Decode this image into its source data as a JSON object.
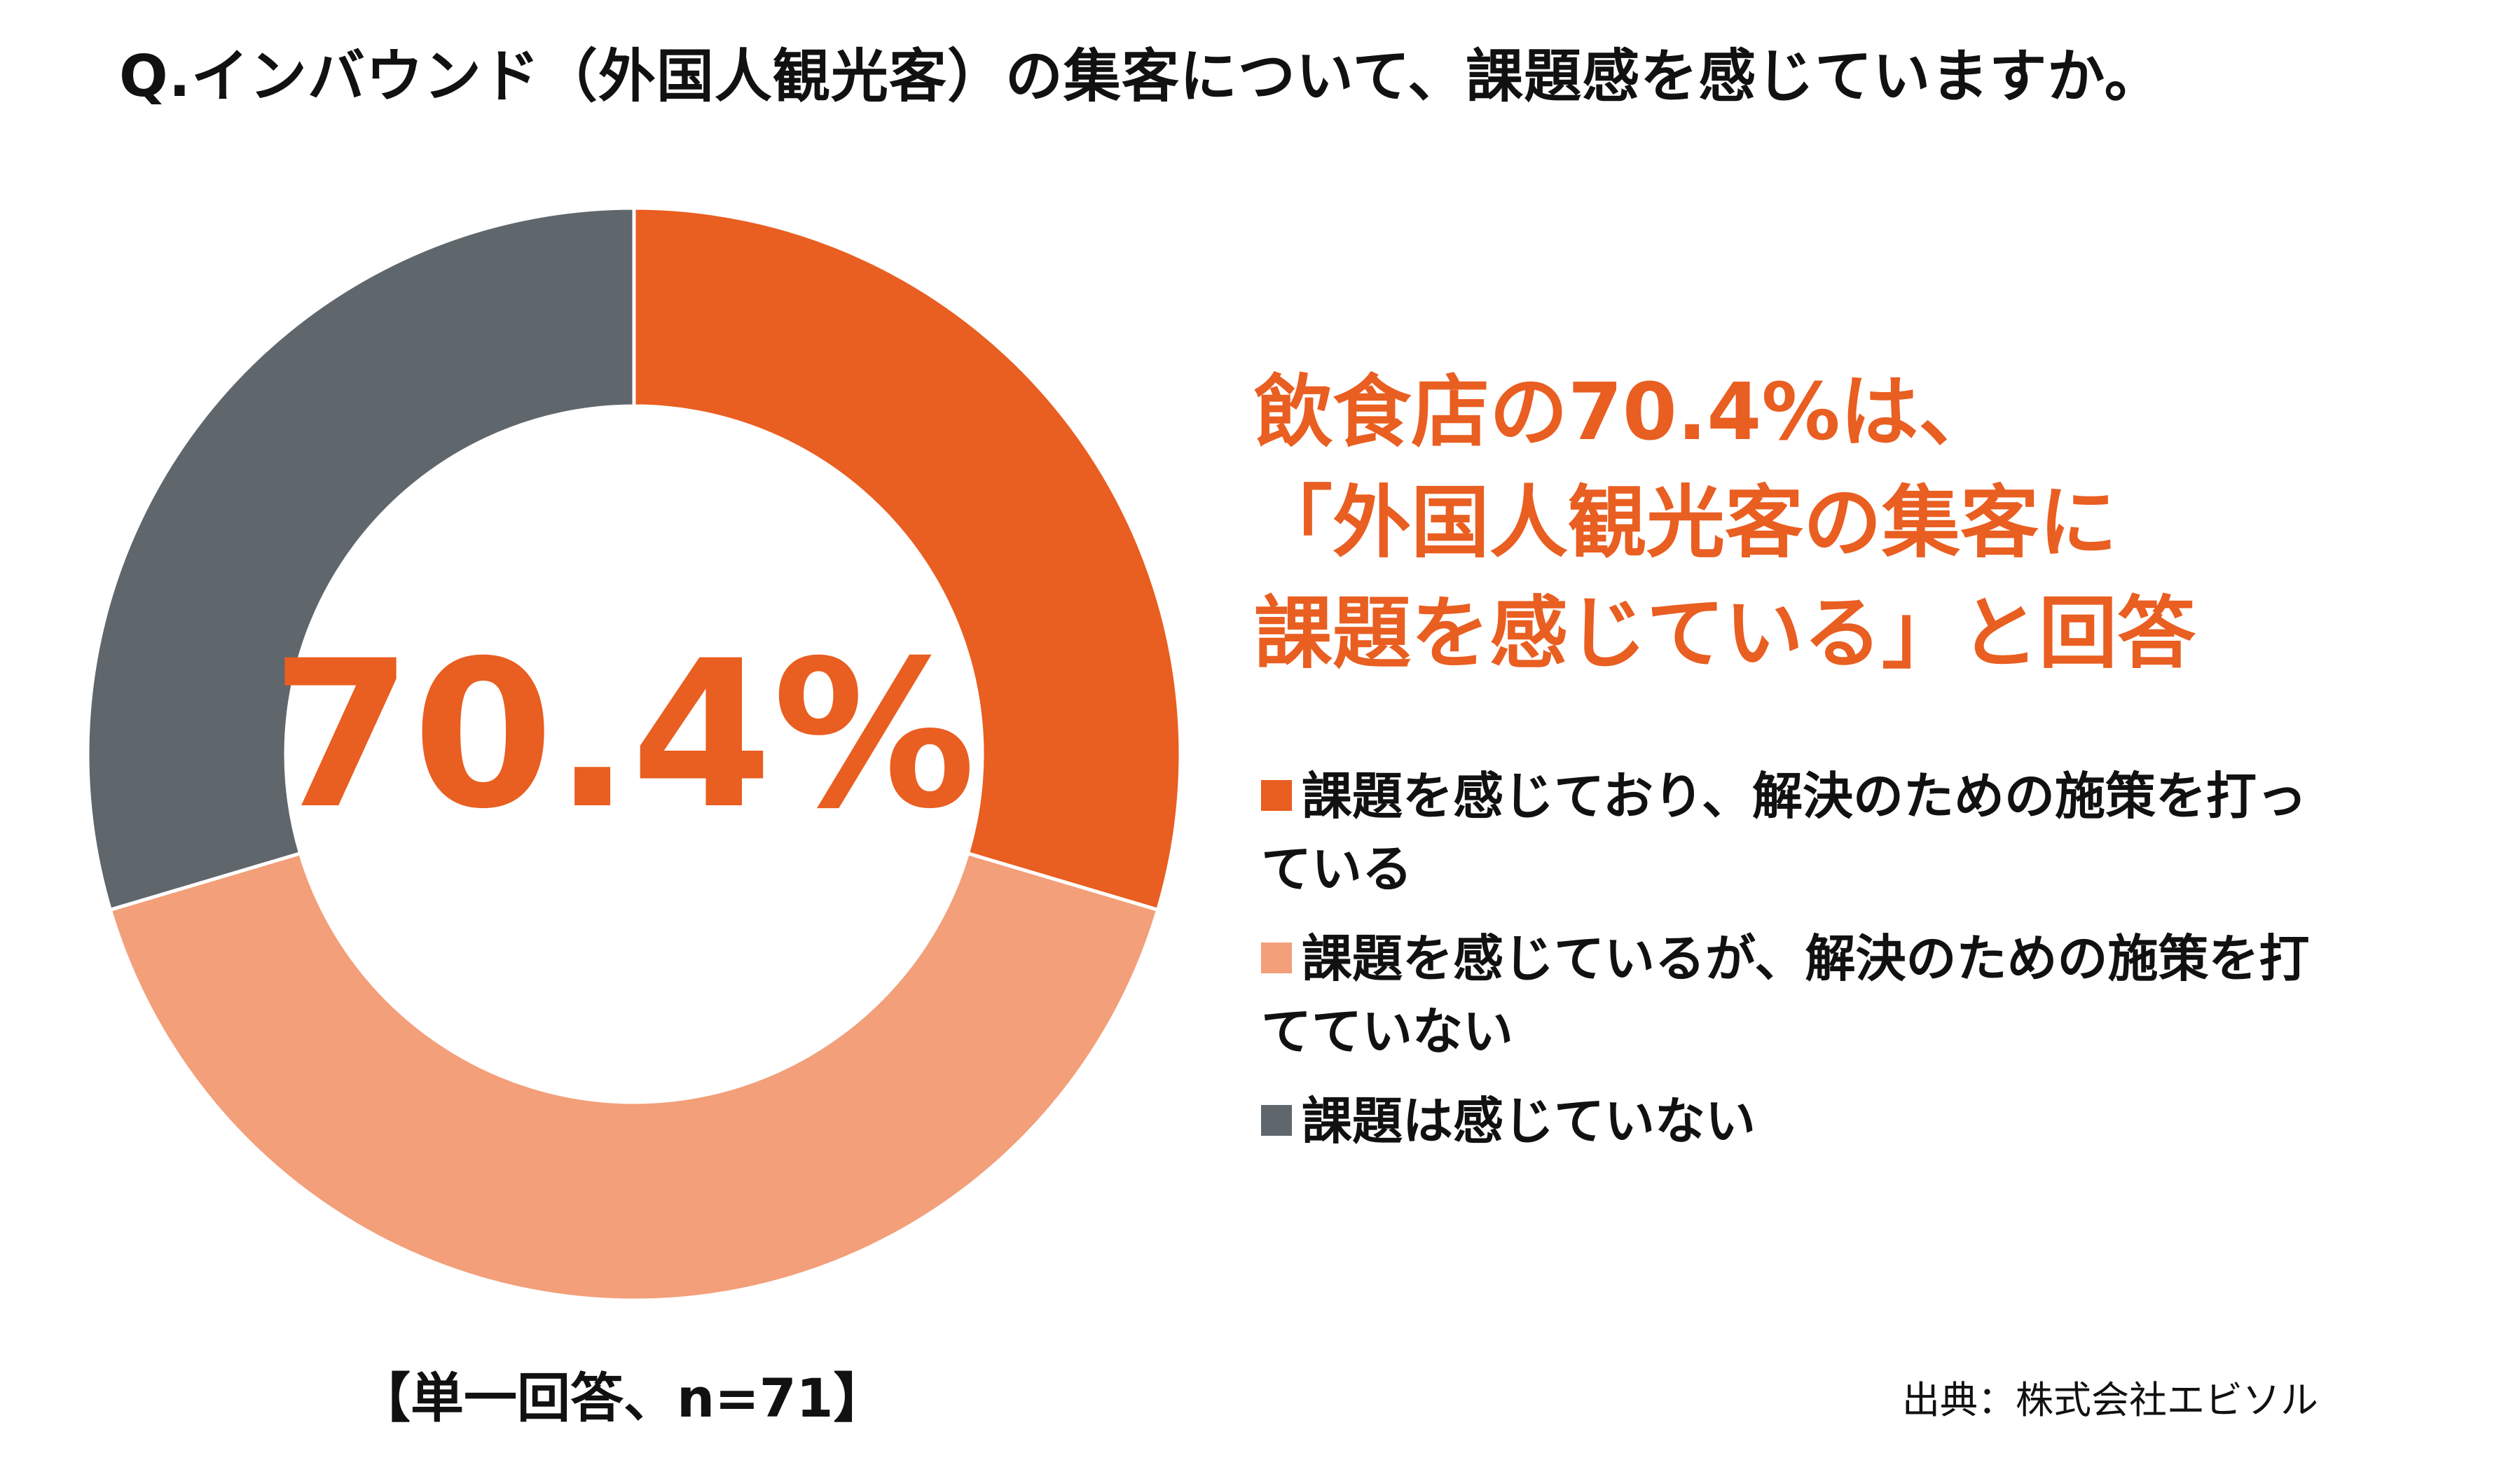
{
  "title": "Q.インバウンド（外国人観光客）の集客について、課題感を感じていますか。",
  "chart_data": {
    "type": "pie",
    "variant": "donut",
    "center_label": "70.4%",
    "slices": [
      {
        "label": "課題を感じており、解決のための施策を打っている",
        "value": 29.6,
        "color": "#E95E21"
      },
      {
        "label": "課題を感じているが、解決のための施策を打てていない",
        "value": 40.8,
        "color": "#F29F7A"
      },
      {
        "label": "課題は感じていない",
        "value": 29.6,
        "color": "#5F666C"
      }
    ]
  },
  "headline": {
    "line1": "飲食店の70.4%は、",
    "line2": "「外国人観光客の集客に",
    "line3": "課題を感じている」と回答",
    "color": "#E95E21"
  },
  "legend": [
    {
      "line1": "課題を感じており、解決のための施策を打っ",
      "line2": "ている",
      "color": "#E95E21"
    },
    {
      "line1": "課題を感じているが、解決のための施策を打",
      "line2": "てていない",
      "color": "#F29F7A"
    },
    {
      "line1": "課題は感じていない",
      "line2": "",
      "color": "#5F666C"
    }
  ],
  "note": "【単一回答、n=71】",
  "source": "出典：株式会社エビソル"
}
